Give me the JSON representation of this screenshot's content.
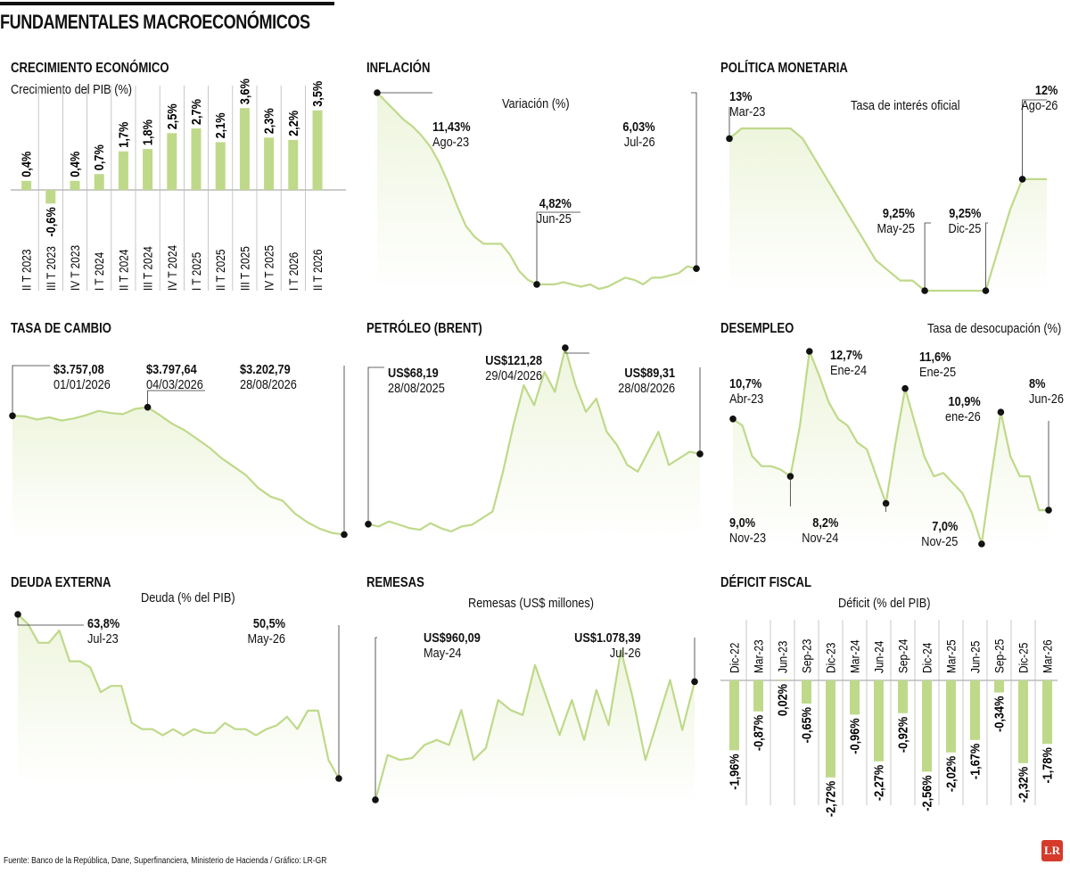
{
  "page": {
    "title": "FUNDAMENTALES MACROECONÓMICOS",
    "source": "Fuente: Banco de la República, Dane, Superfinanciera, Ministerio de Hacienda / Gráfico: LR-GR",
    "logo": "LR",
    "colors": {
      "bar": "#bfd98a",
      "line": "#bfd98a",
      "fill": "#eef5dd",
      "marker": "#111111"
    }
  },
  "chart_data": [
    {
      "id": "crecimiento",
      "type": "bar",
      "title": "CRECIMIENTO ECONÓMICO",
      "subtitle": "Crecimiento del PIB (%)",
      "categories": [
        "II T 2023",
        "III T 2023",
        "IV T 2023",
        "I T 2024",
        "II T 2024",
        "III T 2024",
        "IV T 2024",
        "I T 2025",
        "II T 2025",
        "III T 2025",
        "IV T 2025",
        "I T 2026",
        "II T 2026"
      ],
      "values": [
        0.4,
        -0.6,
        0.4,
        0.7,
        1.7,
        1.8,
        2.5,
        2.7,
        2.1,
        3.6,
        2.3,
        2.2,
        3.5
      ],
      "value_labels": [
        "0,4%",
        "-0,6%",
        "0,4%",
        "0,7%",
        "1,7%",
        "1,8%",
        "2,5%",
        "2,7%",
        "2,1%",
        "3,6%",
        "2,3%",
        "2,2%",
        "3,5%"
      ]
    },
    {
      "id": "inflacion",
      "type": "area",
      "title": "INFLACIÓN",
      "subtitle": "Variación (%)",
      "values": [
        13.3,
        12.9,
        12.5,
        12.1,
        11.8,
        11.4,
        10.9,
        10.2,
        9.3,
        8.3,
        7.4,
        6.9,
        6.6,
        6.6,
        6.6,
        6.1,
        5.4,
        5.0,
        4.8,
        4.8,
        4.8,
        4.9,
        4.8,
        4.7,
        4.8,
        4.6,
        4.7,
        4.9,
        5.1,
        5.0,
        4.8,
        5.1,
        5.1,
        5.2,
        5.3,
        5.6,
        5.5
      ],
      "annotations": [
        {
          "value": "11,43%",
          "date": "Ago-23"
        },
        {
          "value": "4,82%",
          "date": "Jun-25"
        },
        {
          "value": "6,03%",
          "date": "Jul-26"
        }
      ]
    },
    {
      "id": "politica",
      "type": "area",
      "title": "POLÍTICA MONETARIA",
      "subtitle": "Tasa de interés oficial",
      "values": [
        13,
        13.25,
        13.25,
        13.25,
        13.25,
        13.25,
        13,
        12.5,
        12,
        11.5,
        11,
        10.5,
        10,
        9.75,
        9.5,
        9.5,
        9.25,
        9.25,
        9.25,
        9.25,
        9.25,
        9.25,
        10.25,
        11.25,
        12,
        12,
        12
      ],
      "annotations": [
        {
          "value": "13%",
          "date": "Mar-23"
        },
        {
          "value": "9,25%",
          "date": "May-25"
        },
        {
          "value": "9,25%",
          "date": "Dic-25"
        },
        {
          "value": "12%",
          "date": "Ago-26"
        }
      ]
    },
    {
      "id": "cambio",
      "type": "line",
      "title": "TASA DE CAMBIO",
      "values": [
        3757,
        3755,
        3740,
        3750,
        3735,
        3745,
        3760,
        3780,
        3770,
        3765,
        3790,
        3797,
        3760,
        3720,
        3690,
        3650,
        3610,
        3560,
        3520,
        3480,
        3420,
        3380,
        3360,
        3300,
        3260,
        3230,
        3210,
        3202
      ],
      "annotations": [
        {
          "value": "$3.757,08",
          "date": "01/01/2026"
        },
        {
          "value": "$3.797,64",
          "date": "04/03/2026"
        },
        {
          "value": "$3.202,79",
          "date": "28/08/2026"
        }
      ]
    },
    {
      "id": "petroleo",
      "type": "line",
      "title": "PETRÓLEO (BRENT)",
      "values": [
        68.19,
        67.5,
        69,
        68,
        67,
        66.5,
        68.5,
        67,
        66,
        67.5,
        68,
        70,
        72,
        84,
        98,
        110,
        104,
        114,
        108,
        121.28,
        110,
        102,
        106,
        96,
        92,
        86,
        84,
        90,
        96,
        86,
        88,
        90,
        89.31
      ],
      "annotations": [
        {
          "value": "US$68,19",
          "date": "28/08/2025"
        },
        {
          "value": "US$121,28",
          "date": "29/04/2026"
        },
        {
          "value": "US$89,31",
          "date": "28/08/2026"
        }
      ]
    },
    {
      "id": "desempleo",
      "type": "line",
      "title": "DESEMPLEO",
      "subtitle": "Tasa de desocupación (%)",
      "values": [
        10.7,
        10.5,
        9.6,
        9.3,
        9.3,
        9.2,
        9.0,
        10.5,
        12.7,
        12.0,
        11.2,
        10.7,
        10.5,
        10.0,
        9.8,
        9.0,
        8.2,
        10.0,
        11.6,
        10.6,
        9.6,
        9.0,
        9.1,
        8.8,
        8.5,
        7.9,
        7.0,
        9.0,
        10.9,
        9.6,
        9.0,
        9.0,
        8.0,
        8.0
      ],
      "annotations": [
        {
          "value": "10,7%",
          "date": "Abr-23"
        },
        {
          "value": "9,0%",
          "date": "Nov-23"
        },
        {
          "value": "12,7%",
          "date": "Ene-24"
        },
        {
          "value": "8,2%",
          "date": "Nov-24"
        },
        {
          "value": "11,6%",
          "date": "Ene-25"
        },
        {
          "value": "7,0%",
          "date": "Nov-25"
        },
        {
          "value": "10,9%",
          "date": "ene-26"
        },
        {
          "value": "8%",
          "date": "Jun-26"
        }
      ]
    },
    {
      "id": "deuda",
      "type": "area",
      "title": "DEUDA EXTERNA",
      "subtitle": "Deuda (% del PIB)",
      "values": [
        63.8,
        63.0,
        61.5,
        61.5,
        62.5,
        60.0,
        60.0,
        59.5,
        57.5,
        58.0,
        58.0,
        55.0,
        54.5,
        54.5,
        54.0,
        54.5,
        54.0,
        54.5,
        54.2,
        54.2,
        55.0,
        54.5,
        54.5,
        54.0,
        54.5,
        54.8,
        55.5,
        54.5,
        56.0,
        56.0,
        52.0,
        50.5
      ],
      "annotations": [
        {
          "value": "63,8%",
          "date": "Jul-23"
        },
        {
          "value": "50,5%",
          "date": "May-26"
        }
      ]
    },
    {
      "id": "remesas",
      "type": "area",
      "title": "REMESAS",
      "subtitle": "Remesas (US$ millones)",
      "values": [
        960.09,
        1005,
        1000,
        1002,
        1015,
        1020,
        1015,
        1050,
        1000,
        1012,
        1060,
        1050,
        1045,
        1095,
        1060,
        1025,
        1060,
        1020,
        1070,
        1035,
        1110,
        1060,
        1000,
        1040,
        1080,
        1030,
        1078.39
      ],
      "annotations": [
        {
          "value": "US$960,09",
          "date": "May-24"
        },
        {
          "value": "US$1.078,39",
          "date": "Jul-26"
        }
      ]
    },
    {
      "id": "deficit",
      "type": "bar",
      "title": "DÉFICIT FISCAL",
      "subtitle": "Déficit (% del PIB)",
      "categories": [
        "Dic-22",
        "Mar-23",
        "Jun-23",
        "Sep-23",
        "Dic-23",
        "Mar-24",
        "Jun-24",
        "Sep-24",
        "Dic-24",
        "Mar-25",
        "Jun-25",
        "Sep-25",
        "Dic-25",
        "Mar-26"
      ],
      "values": [
        -1.96,
        -0.87,
        0.02,
        -0.65,
        -2.72,
        -0.96,
        -2.27,
        -0.92,
        -2.56,
        -2.02,
        -1.67,
        -0.34,
        -2.32,
        -1.78
      ],
      "value_labels": [
        "-1,96%",
        "-0,87%",
        "0,02%",
        "-0,65%",
        "-2,72%",
        "-0,96%",
        "-2,27%",
        "-0,92%",
        "-2,56%",
        "-2,02%",
        "-1,67%",
        "-0,34%",
        "-2,32%",
        "-1,78%"
      ]
    }
  ]
}
